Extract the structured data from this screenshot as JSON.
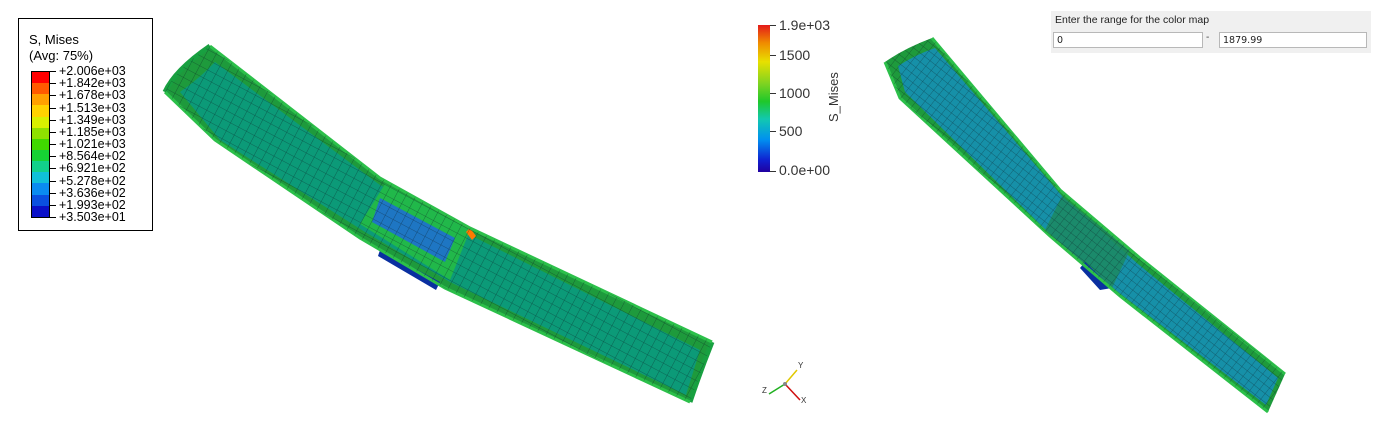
{
  "abaqus_legend": {
    "title": "S, Mises",
    "subtitle": "(Avg: 75%)",
    "labels": [
      "+2.006e+03",
      "+1.842e+03",
      "+1.678e+03",
      "+1.513e+03",
      "+1.349e+03",
      "+1.185e+03",
      "+1.021e+03",
      "+8.564e+02",
      "+6.921e+02",
      "+5.278e+02",
      "+3.636e+02",
      "+1.993e+02",
      "+3.503e+01"
    ],
    "band_colors": [
      "#ff0000",
      "#ff5a00",
      "#ffa000",
      "#ffd200",
      "#d8f000",
      "#8ee000",
      "#40d800",
      "#16d234",
      "#12d08a",
      "#10c0d8",
      "#0a8cf0",
      "#0a50e0",
      "#0a10c8"
    ]
  },
  "paraview_colorbar": {
    "title": "S_Mises",
    "max_label": "1.9e+03",
    "ticks": [
      "1500",
      "1000",
      "500"
    ],
    "min_label": "0.0e+00"
  },
  "axis_triad": {
    "y": "Y",
    "z": "Z",
    "x": "X"
  },
  "range_panel": {
    "label": "Enter the range for the color map",
    "min_value": "0",
    "max_value": "1879.99",
    "separator": "-"
  }
}
